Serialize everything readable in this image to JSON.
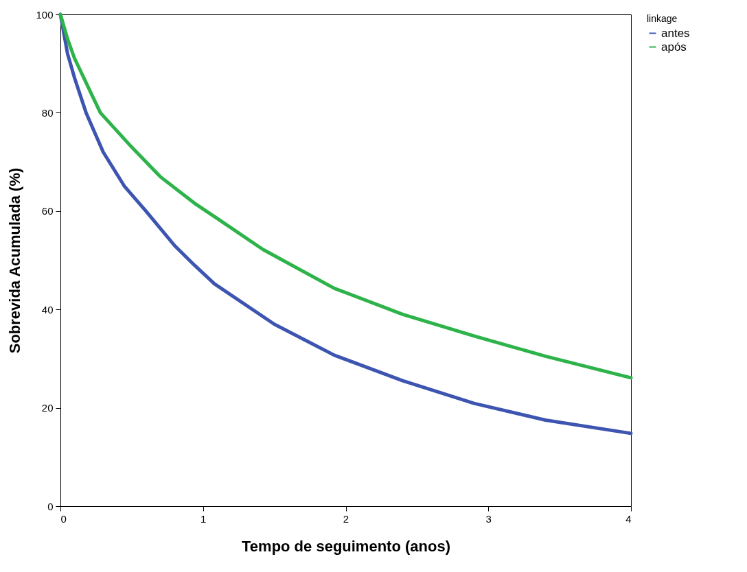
{
  "chart_data": {
    "type": "line",
    "xlabel": "Tempo de seguimento (anos)",
    "ylabel": "Sobrevida Acumulada (%)",
    "legend_title": "linkage",
    "legend": "top right",
    "grid": false,
    "marker": "none",
    "line_style": "solid",
    "xlim": [
      0,
      4
    ],
    "xticks": [
      0,
      1,
      2,
      3,
      4
    ],
    "ylim": [
      0,
      100
    ],
    "yticks": [
      0,
      20,
      40,
      60,
      80,
      100
    ],
    "series": [
      {
        "name": "antes",
        "color": "#3d55b0",
        "x": [
          0,
          0.05,
          0.1,
          0.18,
          0.3,
          0.45,
          0.6,
          0.8,
          0.94,
          1.08,
          1.5,
          1.92,
          2.4,
          2.9,
          3.4,
          4
        ],
        "values": [
          100,
          92,
          87,
          80,
          72,
          65,
          60,
          53,
          49,
          45.2,
          37,
          30.7,
          25.5,
          20.9,
          17.5,
          14.8
        ]
      },
      {
        "name": "após",
        "color": "#2db34a",
        "x": [
          0,
          0.05,
          0.1,
          0.28,
          0.5,
          0.7,
          0.94,
          1.1,
          1.42,
          1.92,
          2.4,
          2.9,
          3.4,
          4
        ],
        "values": [
          100,
          95,
          91,
          80,
          73,
          67,
          61.6,
          58.5,
          52.2,
          44.3,
          39,
          34.6,
          30.5,
          26.1
        ]
      }
    ]
  }
}
